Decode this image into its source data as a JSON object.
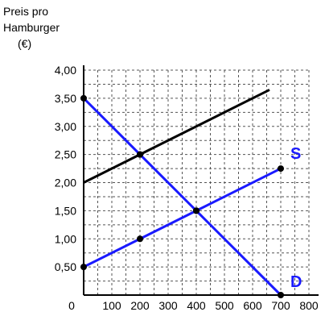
{
  "chart_data": {
    "type": "line",
    "ylabel_lines": [
      "Preis pro",
      "Hamburger",
      "(€)"
    ],
    "xlabel": "",
    "x_ticks": [
      "0",
      "100",
      "200",
      "300",
      "400",
      "500",
      "600",
      "700",
      "800"
    ],
    "y_ticks": [
      "0,50",
      "1,00",
      "1,50",
      "2,00",
      "2,50",
      "3,00",
      "3,50",
      "4,00"
    ],
    "xlim": [
      0,
      800
    ],
    "ylim": [
      0,
      4.0
    ],
    "grid": true,
    "series": [
      {
        "name": "D",
        "color": "#1a1aff",
        "x": [
          0,
          200,
          400,
          700
        ],
        "y": [
          3.5,
          2.5,
          1.5,
          0.0
        ],
        "markers": [
          true,
          true,
          true,
          true
        ]
      },
      {
        "name": "S",
        "color": "#1a1aff",
        "x": [
          0,
          200,
          400,
          700
        ],
        "y": [
          0.5,
          1.0,
          1.5,
          2.25
        ],
        "markers": [
          true,
          true,
          true,
          true
        ]
      },
      {
        "name": "",
        "color": "#000000",
        "x": [
          0,
          200,
          660
        ],
        "y": [
          2.0,
          2.5,
          3.65
        ],
        "markers": [
          false,
          true,
          false
        ]
      }
    ]
  }
}
